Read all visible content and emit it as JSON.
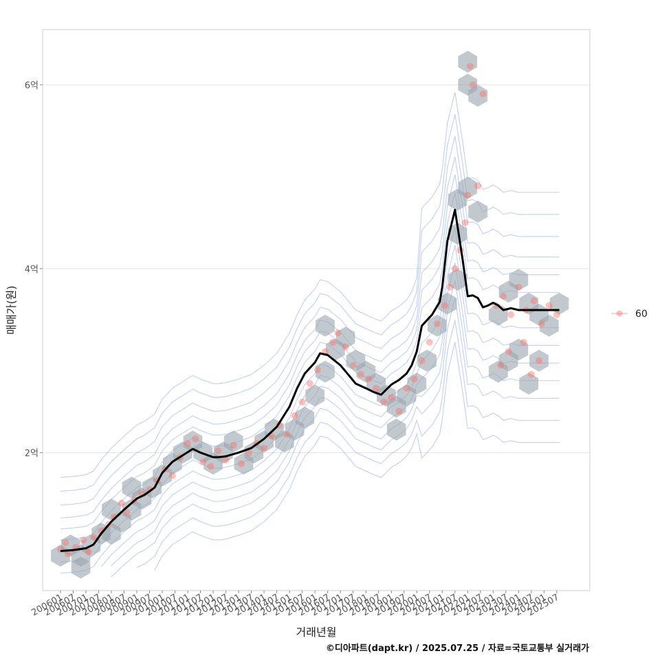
{
  "chart_data": {
    "type": "scatter",
    "xlabel": "거래년월",
    "ylabel": "매매가(원)",
    "caption": "©디아파트(dapt.kr) / 2025.07.25 / 자료=국토교통부 실거래가",
    "x_ticks": [
      "200601",
      "200607",
      "200701",
      "200707",
      "200801",
      "200807",
      "200901",
      "200907",
      "201001",
      "201007",
      "201101",
      "201107",
      "201201",
      "201207",
      "201301",
      "201307",
      "201401",
      "201407",
      "201501",
      "201507",
      "201601",
      "201607",
      "201701",
      "201707",
      "201801",
      "201807",
      "201901",
      "201907",
      "202001",
      "202007",
      "202101",
      "202107",
      "202201",
      "202207",
      "202301",
      "202307",
      "202401",
      "202407",
      "202501",
      "202507"
    ],
    "y_ticks": [
      {
        "value": 2,
        "label": "2억"
      },
      {
        "value": 4,
        "label": "4억"
      },
      {
        "value": 6,
        "label": "6억"
      }
    ],
    "ylim": [
      0.5,
      6.6
    ],
    "xlim": [
      2005.3,
      2026.8
    ],
    "grid": "horizontal",
    "legend_position": "right",
    "legend": [
      {
        "label": "60",
        "color": "#f8766d"
      }
    ],
    "trend_line": {
      "name": "median",
      "color": "#000000",
      "x": [
        2006.0,
        2006.5,
        2007.0,
        2007.3,
        2007.6,
        2008.0,
        2008.5,
        2009.0,
        2009.3,
        2009.7,
        2010.0,
        2010.4,
        2010.8,
        2011.2,
        2011.5,
        2011.8,
        2012.0,
        2012.2,
        2012.5,
        2013.0,
        2013.5,
        2014.0,
        2014.5,
        2015.0,
        2015.3,
        2015.6,
        2016.0,
        2016.2,
        2016.5,
        2017.0,
        2017.3,
        2017.6,
        2018.0,
        2018.3,
        2018.6,
        2019.0,
        2019.3,
        2019.6,
        2019.8,
        2020.0,
        2020.2,
        2020.6,
        2020.9,
        2021.0,
        2021.2,
        2021.5,
        2021.8,
        2022.0,
        2022.2,
        2022.4,
        2022.6,
        2022.8,
        2023.0,
        2023.2,
        2023.4,
        2023.7,
        2024.0,
        2024.3,
        2024.6,
        2024.9,
        2025.2,
        2025.6
      ],
      "y": [
        0.93,
        0.94,
        0.96,
        1.0,
        1.12,
        1.25,
        1.38,
        1.5,
        1.54,
        1.62,
        1.78,
        1.9,
        1.97,
        2.04,
        2.0,
        1.97,
        1.95,
        1.95,
        1.96,
        2.0,
        2.05,
        2.15,
        2.28,
        2.5,
        2.7,
        2.86,
        2.98,
        3.08,
        3.06,
        2.95,
        2.85,
        2.75,
        2.7,
        2.66,
        2.63,
        2.74,
        2.79,
        2.86,
        2.95,
        3.1,
        3.38,
        3.5,
        3.64,
        3.8,
        4.3,
        4.64,
        4.1,
        3.7,
        3.71,
        3.68,
        3.58,
        3.6,
        3.63,
        3.6,
        3.55,
        3.57,
        3.55,
        3.55,
        3.55,
        3.55,
        3.55,
        3.55
      ]
    },
    "hexbins": [
      {
        "x": 2006.0,
        "y": 0.88
      },
      {
        "x": 2006.4,
        "y": 0.99
      },
      {
        "x": 2006.8,
        "y": 0.88
      },
      {
        "x": 2007.2,
        "y": 0.99
      },
      {
        "x": 2006.8,
        "y": 0.75
      },
      {
        "x": 2007.6,
        "y": 1.12
      },
      {
        "x": 2008.0,
        "y": 1.12
      },
      {
        "x": 2008.4,
        "y": 1.25
      },
      {
        "x": 2008.0,
        "y": 1.38
      },
      {
        "x": 2008.8,
        "y": 1.38
      },
      {
        "x": 2009.2,
        "y": 1.5
      },
      {
        "x": 2008.8,
        "y": 1.62
      },
      {
        "x": 2009.6,
        "y": 1.62
      },
      {
        "x": 2010.0,
        "y": 1.75
      },
      {
        "x": 2010.4,
        "y": 1.88
      },
      {
        "x": 2010.8,
        "y": 2.0
      },
      {
        "x": 2011.2,
        "y": 2.12
      },
      {
        "x": 2011.6,
        "y": 2.0
      },
      {
        "x": 2012.0,
        "y": 1.88
      },
      {
        "x": 2012.4,
        "y": 2.0
      },
      {
        "x": 2012.8,
        "y": 2.12
      },
      {
        "x": 2013.2,
        "y": 1.88
      },
      {
        "x": 2013.6,
        "y": 2.0
      },
      {
        "x": 2014.0,
        "y": 2.12
      },
      {
        "x": 2014.4,
        "y": 2.25
      },
      {
        "x": 2014.8,
        "y": 2.12
      },
      {
        "x": 2015.2,
        "y": 2.25
      },
      {
        "x": 2015.6,
        "y": 2.38
      },
      {
        "x": 2016.0,
        "y": 2.62
      },
      {
        "x": 2016.4,
        "y": 2.88
      },
      {
        "x": 2016.8,
        "y": 3.12
      },
      {
        "x": 2017.2,
        "y": 3.25
      },
      {
        "x": 2016.4,
        "y": 3.38
      },
      {
        "x": 2017.6,
        "y": 3.0
      },
      {
        "x": 2018.0,
        "y": 2.88
      },
      {
        "x": 2018.4,
        "y": 2.75
      },
      {
        "x": 2018.8,
        "y": 2.62
      },
      {
        "x": 2019.2,
        "y": 2.5
      },
      {
        "x": 2019.6,
        "y": 2.62
      },
      {
        "x": 2020.0,
        "y": 2.75
      },
      {
        "x": 2020.4,
        "y": 3.0
      },
      {
        "x": 2019.2,
        "y": 2.25
      },
      {
        "x": 2020.8,
        "y": 3.38
      },
      {
        "x": 2021.2,
        "y": 3.62
      },
      {
        "x": 2021.6,
        "y": 3.88
      },
      {
        "x": 2021.6,
        "y": 4.38
      },
      {
        "x": 2021.6,
        "y": 4.75
      },
      {
        "x": 2022.0,
        "y": 4.88
      },
      {
        "x": 2022.4,
        "y": 4.62
      },
      {
        "x": 2022.0,
        "y": 6.25
      },
      {
        "x": 2022.0,
        "y": 6.0
      },
      {
        "x": 2022.4,
        "y": 5.88
      },
      {
        "x": 2023.2,
        "y": 3.5
      },
      {
        "x": 2023.6,
        "y": 3.75
      },
      {
        "x": 2024.0,
        "y": 3.88
      },
      {
        "x": 2024.4,
        "y": 3.62
      },
      {
        "x": 2024.8,
        "y": 3.5
      },
      {
        "x": 2025.2,
        "y": 3.38
      },
      {
        "x": 2025.6,
        "y": 3.62
      },
      {
        "x": 2023.6,
        "y": 3.0
      },
      {
        "x": 2024.0,
        "y": 3.12
      },
      {
        "x": 2024.8,
        "y": 3.0
      },
      {
        "x": 2023.2,
        "y": 2.88
      },
      {
        "x": 2024.4,
        "y": 2.75
      }
    ],
    "sample_points": [
      [
        2006.0,
        0.95
      ],
      [
        2006.2,
        1.02
      ],
      [
        2006.3,
        0.9
      ],
      [
        2006.6,
        0.97
      ],
      [
        2006.9,
        1.05
      ],
      [
        2007.1,
        0.92
      ],
      [
        2007.3,
        1.08
      ],
      [
        2007.6,
        1.15
      ],
      [
        2007.9,
        1.22
      ],
      [
        2008.1,
        1.3
      ],
      [
        2008.4,
        1.45
      ],
      [
        2008.6,
        1.35
      ],
      [
        2008.9,
        1.48
      ],
      [
        2009.2,
        1.55
      ],
      [
        2009.5,
        1.6
      ],
      [
        2009.8,
        1.7
      ],
      [
        2010.1,
        1.82
      ],
      [
        2010.4,
        1.75
      ],
      [
        2010.7,
        1.95
      ],
      [
        2011.0,
        2.1
      ],
      [
        2011.3,
        2.15
      ],
      [
        2011.6,
        1.9
      ],
      [
        2011.9,
        1.85
      ],
      [
        2012.2,
        2.02
      ],
      [
        2012.5,
        1.92
      ],
      [
        2012.8,
        2.08
      ],
      [
        2013.1,
        1.88
      ],
      [
        2013.4,
        2.0
      ],
      [
        2013.7,
        2.1
      ],
      [
        2014.0,
        2.05
      ],
      [
        2014.3,
        2.18
      ],
      [
        2014.6,
        2.3
      ],
      [
        2014.9,
        2.2
      ],
      [
        2015.2,
        2.4
      ],
      [
        2015.5,
        2.55
      ],
      [
        2015.8,
        2.75
      ],
      [
        2016.1,
        2.9
      ],
      [
        2016.4,
        3.1
      ],
      [
        2016.7,
        3.2
      ],
      [
        2016.9,
        3.3
      ],
      [
        2017.2,
        3.15
      ],
      [
        2017.5,
        2.95
      ],
      [
        2017.8,
        2.85
      ],
      [
        2018.1,
        2.8
      ],
      [
        2018.4,
        2.7
      ],
      [
        2018.7,
        2.55
      ],
      [
        2019.0,
        2.6
      ],
      [
        2019.3,
        2.45
      ],
      [
        2019.6,
        2.7
      ],
      [
        2019.9,
        2.8
      ],
      [
        2020.2,
        3.0
      ],
      [
        2020.5,
        3.2
      ],
      [
        2020.8,
        3.4
      ],
      [
        2021.1,
        3.6
      ],
      [
        2021.3,
        3.8
      ],
      [
        2021.5,
        4.0
      ],
      [
        2021.7,
        4.2
      ],
      [
        2021.9,
        4.5
      ],
      [
        2022.0,
        4.8
      ],
      [
        2022.1,
        6.2
      ],
      [
        2022.2,
        6.0
      ],
      [
        2022.6,
        5.9
      ],
      [
        2022.4,
        4.9
      ],
      [
        2023.1,
        3.6
      ],
      [
        2023.4,
        3.7
      ],
      [
        2023.7,
        3.5
      ],
      [
        2024.0,
        3.8
      ],
      [
        2024.3,
        3.55
      ],
      [
        2024.6,
        3.65
      ],
      [
        2024.9,
        3.4
      ],
      [
        2025.2,
        3.6
      ],
      [
        2025.5,
        3.5
      ],
      [
        2023.6,
        3.1
      ],
      [
        2024.2,
        3.2
      ],
      [
        2024.8,
        3.0
      ],
      [
        2023.3,
        2.95
      ],
      [
        2024.5,
        2.85
      ]
    ]
  }
}
